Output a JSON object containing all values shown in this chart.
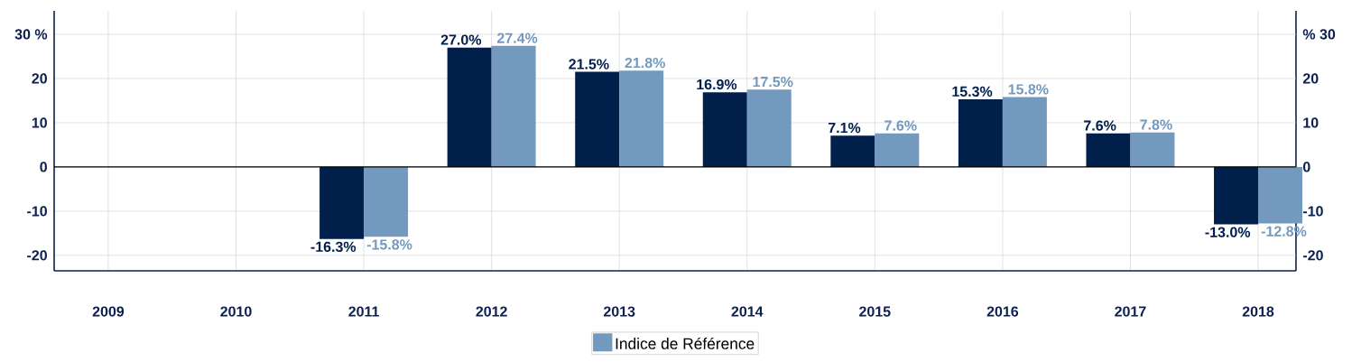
{
  "chart_data": {
    "type": "bar",
    "categories": [
      "2009",
      "2010",
      "2011",
      "2012",
      "2013",
      "2014",
      "2015",
      "2016",
      "2017",
      "2018"
    ],
    "series": [
      {
        "color": "#001f4b",
        "values": [
          null,
          null,
          -16.3,
          27.0,
          21.5,
          16.9,
          7.1,
          15.3,
          7.6,
          -13.0
        ],
        "value_labels": [
          null,
          null,
          "-16.3%",
          "27.0%",
          "21.5%",
          "16.9%",
          "7.1%",
          "15.3%",
          "7.6%",
          "-13.0%"
        ]
      },
      {
        "name": "Indice de Référence",
        "color": "#7399bf",
        "values": [
          null,
          null,
          -15.8,
          27.4,
          21.8,
          17.5,
          7.6,
          15.8,
          7.8,
          -12.8
        ],
        "value_labels": [
          null,
          null,
          "-15.8%",
          "27.4%",
          "21.8%",
          "17.5%",
          "7.6%",
          "15.8%",
          "7.8%",
          "-12.8%"
        ]
      }
    ],
    "ylim": [
      -23.5,
      35.3
    ],
    "yticks": [
      -20,
      -10,
      0,
      10,
      20,
      {
        "value": 30,
        "label": "30 %"
      }
    ],
    "y2lim": [
      -23.5,
      35.3
    ],
    "y2ticks": [
      -20,
      -10,
      0,
      10,
      20,
      {
        "value": 30,
        "label": "% 30"
      }
    ],
    "grid": true,
    "legend": "bottom"
  }
}
